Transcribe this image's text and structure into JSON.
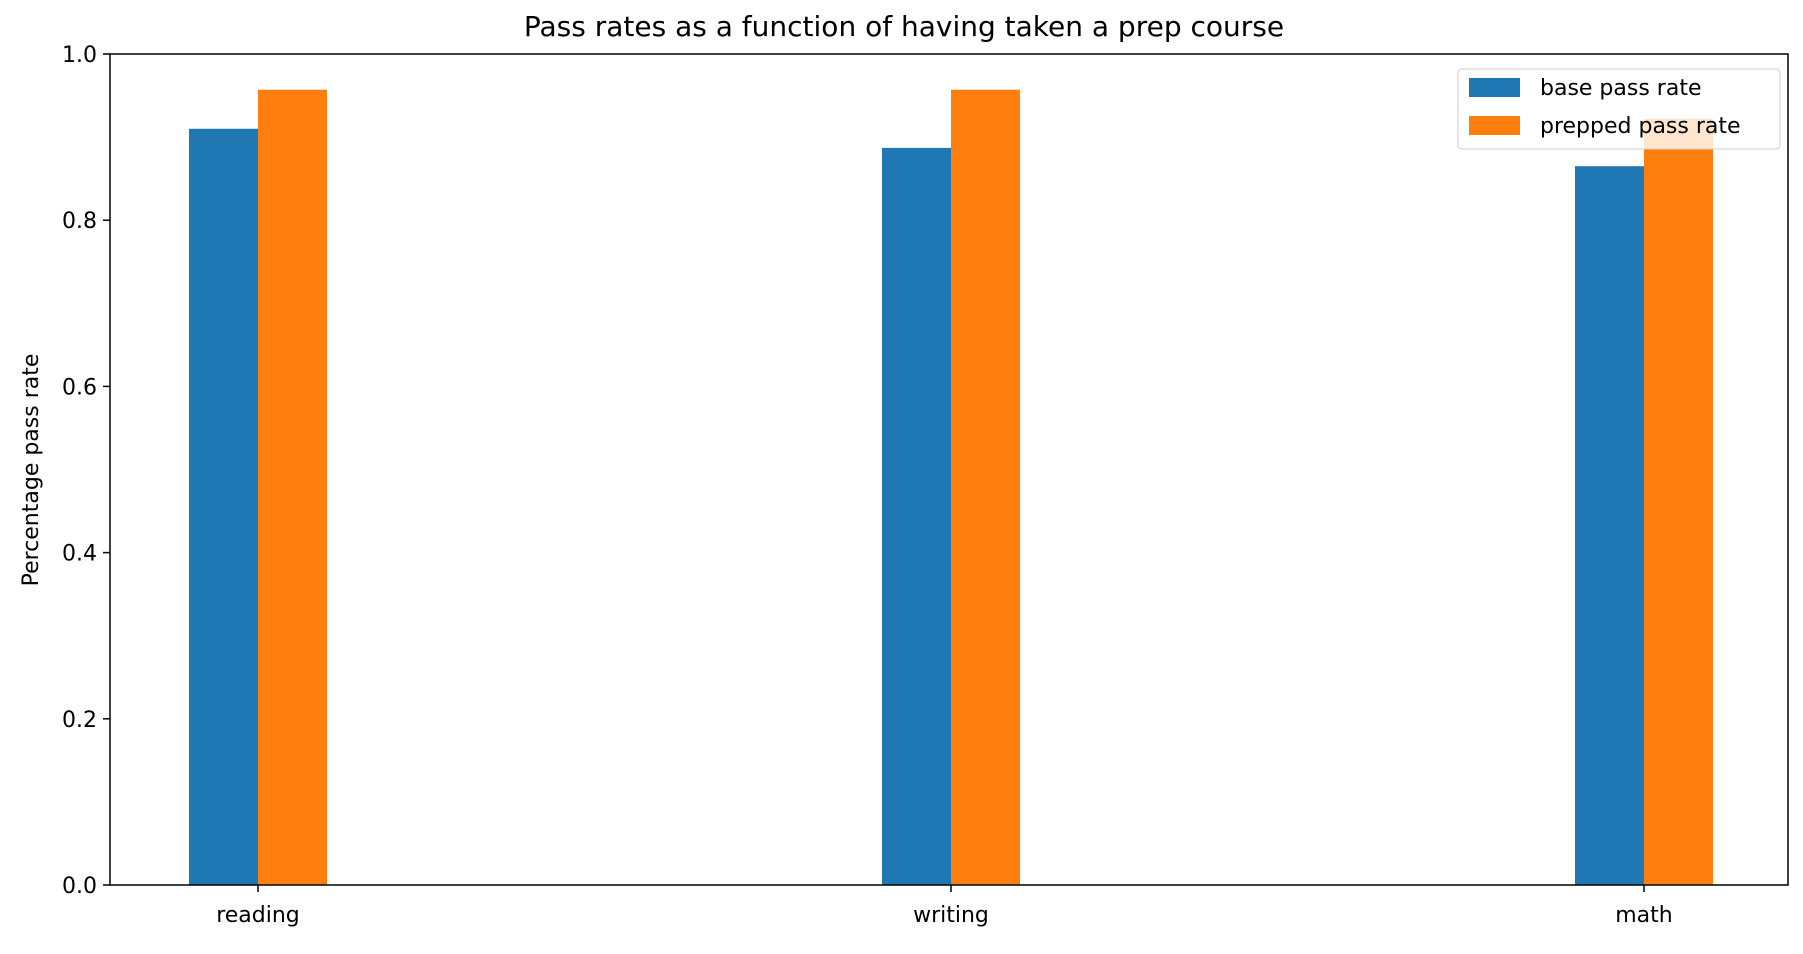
{
  "chart_data": {
    "type": "bar",
    "title": "Pass rates as a function of having taken a prep course",
    "xlabel": "",
    "ylabel": "Percentage pass rate",
    "categories": [
      "reading",
      "writing",
      "math"
    ],
    "series": [
      {
        "name": "base pass rate",
        "color": "#1f77b4",
        "values": [
          0.91,
          0.887,
          0.865
        ]
      },
      {
        "name": "prepped pass rate",
        "color": "#ff7f0e",
        "values": [
          0.957,
          0.957,
          0.922
        ]
      }
    ],
    "ylim": [
      0,
      1.0
    ],
    "yticks": [
      "0.0",
      "0.2",
      "0.4",
      "0.6",
      "0.8",
      "1.0"
    ],
    "grid": false,
    "legend_position": "top-right"
  }
}
